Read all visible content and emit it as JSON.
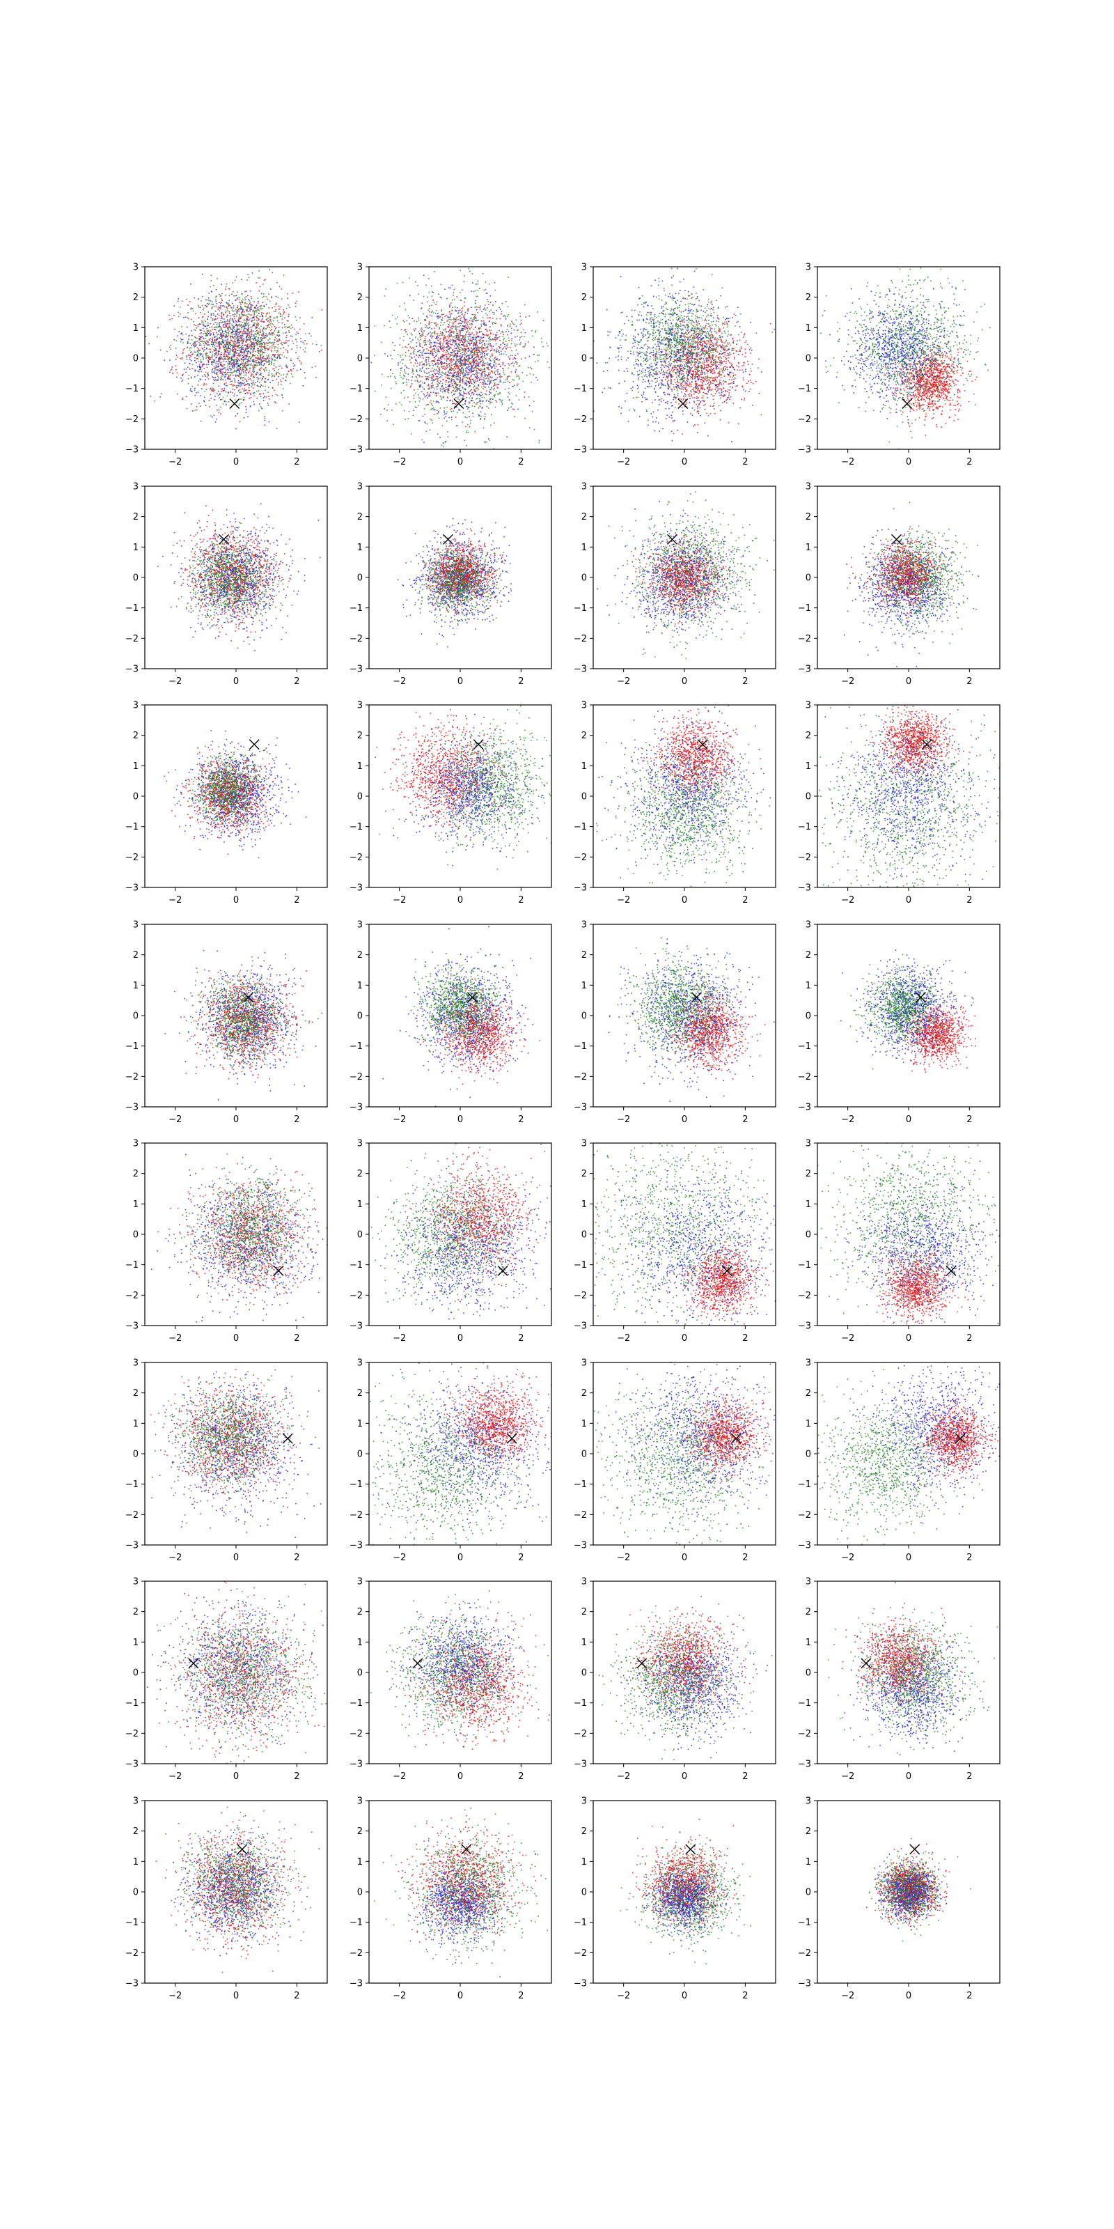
{
  "figure": {
    "rows": 8,
    "cols": 4,
    "background": "#ffffff"
  },
  "style": {
    "colors": {
      "red": "#e41a1c",
      "green": "#2a8a2a",
      "blue": "#2b2bd9",
      "marker": "#000000"
    },
    "axis_color": "#000000"
  },
  "chart_data": {
    "type": "scatter",
    "xlim": [
      -3,
      3
    ],
    "ylim": [
      -3,
      3
    ],
    "x_ticks": [
      -2,
      0,
      2
    ],
    "y_ticks": [
      -3,
      -2,
      -1,
      0,
      1,
      2,
      3
    ],
    "x_tick_labels": [
      "−2",
      "0",
      "2"
    ],
    "y_tick_labels": [
      "−3",
      "−2",
      "−1",
      "0",
      "1",
      "2",
      "3"
    ],
    "grid": false,
    "legend": "none",
    "title": "",
    "xlabel": "",
    "ylabel": "",
    "marker_symbol": "×",
    "description_of_series": [
      "red",
      "green",
      "blue"
    ],
    "rows": [
      {
        "marker": [
          -0.05,
          -1.5
        ],
        "panels": [
          {
            "red": {
              "cx": 0.1,
              "cy": 0.4,
              "sd": 0.9
            },
            "green": {
              "cx": 0.2,
              "cy": 0.5,
              "sd": 0.9
            },
            "blue": {
              "cx": -0.1,
              "cy": 0.3,
              "sd": 0.9
            }
          },
          {
            "red": {
              "cx": 0.0,
              "cy": 0.1,
              "sd": 0.8
            },
            "green": {
              "cx": 0.0,
              "cy": 0.0,
              "sd": 1.3
            },
            "blue": {
              "cx": 0.0,
              "cy": 0.0,
              "sd": 0.9
            }
          },
          {
            "red": {
              "cx": 0.6,
              "cy": -0.2,
              "sd": 0.7
            },
            "green": {
              "cx": -0.2,
              "cy": 0.5,
              "sd": 0.8
            },
            "blue": {
              "cx": -0.2,
              "cy": 0.1,
              "sd": 1.0
            }
          },
          {
            "red": {
              "cx": 0.7,
              "cy": -0.8,
              "sd": 0.5
            },
            "green": {
              "cx": 0.0,
              "cy": 0.4,
              "sd": 1.0
            },
            "blue": {
              "cx": -0.3,
              "cy": 0.3,
              "sd": 0.8
            }
          }
        ]
      },
      {
        "marker": [
          -0.4,
          1.25
        ],
        "panels": [
          {
            "red": {
              "cx": -0.1,
              "cy": 0.1,
              "sd": 0.7
            },
            "green": {
              "cx": -0.2,
              "cy": 0.0,
              "sd": 0.6
            },
            "blue": {
              "cx": 0.0,
              "cy": 0.0,
              "sd": 0.8
            }
          },
          {
            "red": {
              "cx": 0.0,
              "cy": 0.1,
              "sd": 0.5
            },
            "green": {
              "cx": -0.1,
              "cy": -0.1,
              "sd": 0.5
            },
            "blue": {
              "cx": 0.0,
              "cy": 0.0,
              "sd": 0.7
            }
          },
          {
            "red": {
              "cx": 0.0,
              "cy": 0.0,
              "sd": 0.55
            },
            "green": {
              "cx": 0.2,
              "cy": 0.2,
              "sd": 0.9
            },
            "blue": {
              "cx": -0.1,
              "cy": -0.1,
              "sd": 0.8
            }
          },
          {
            "red": {
              "cx": -0.1,
              "cy": 0.1,
              "sd": 0.5
            },
            "green": {
              "cx": 0.3,
              "cy": 0.0,
              "sd": 0.7
            },
            "blue": {
              "cx": -0.1,
              "cy": -0.3,
              "sd": 0.7
            }
          }
        ]
      },
      {
        "marker": [
          0.6,
          1.7
        ],
        "panels": [
          {
            "red": {
              "cx": -0.2,
              "cy": 0.1,
              "sd": 0.6
            },
            "green": {
              "cx": -0.3,
              "cy": 0.2,
              "sd": 0.5
            },
            "blue": {
              "cx": 0.0,
              "cy": 0.1,
              "sd": 0.7
            }
          },
          {
            "red": {
              "cx": -0.5,
              "cy": 0.7,
              "sd": 0.8
            },
            "green": {
              "cx": 1.0,
              "cy": 0.4,
              "sd": 0.9
            },
            "blue": {
              "cx": 0.3,
              "cy": 0.2,
              "sd": 0.8
            }
          },
          {
            "red": {
              "cx": 0.3,
              "cy": 1.3,
              "sd": 0.6
            },
            "green": {
              "cx": 0.0,
              "cy": -0.5,
              "sd": 1.0
            },
            "blue": {
              "cx": 0.1,
              "cy": 0.2,
              "sd": 1.0
            }
          },
          {
            "red": {
              "cx": 0.2,
              "cy": 1.8,
              "sd": 0.5
            },
            "green": {
              "cx": 0.0,
              "cy": -0.5,
              "sd": 1.5
            },
            "blue": {
              "cx": 0.0,
              "cy": 0.2,
              "sd": 1.1
            }
          }
        ]
      },
      {
        "marker": [
          0.4,
          0.6
        ],
        "panels": [
          {
            "red": {
              "cx": 0.3,
              "cy": -0.2,
              "sd": 0.7
            },
            "green": {
              "cx": 0.2,
              "cy": -0.1,
              "sd": 0.6
            },
            "blue": {
              "cx": 0.4,
              "cy": -0.1,
              "sd": 0.8
            }
          },
          {
            "red": {
              "cx": 0.6,
              "cy": -0.5,
              "sd": 0.6
            },
            "green": {
              "cx": 0.0,
              "cy": 0.3,
              "sd": 0.6
            },
            "blue": {
              "cx": 0.2,
              "cy": 0.0,
              "sd": 0.8
            }
          },
          {
            "red": {
              "cx": 0.8,
              "cy": -0.5,
              "sd": 0.55
            },
            "green": {
              "cx": -0.2,
              "cy": 0.3,
              "sd": 0.7
            },
            "blue": {
              "cx": 0.2,
              "cy": 0.0,
              "sd": 0.9
            }
          },
          {
            "red": {
              "cx": 0.9,
              "cy": -0.6,
              "sd": 0.45
            },
            "green": {
              "cx": -0.2,
              "cy": 0.3,
              "sd": 0.55
            },
            "blue": {
              "cx": 0.0,
              "cy": 0.2,
              "sd": 0.7
            }
          }
        ]
      },
      {
        "marker": [
          1.4,
          -1.2
        ],
        "panels": [
          {
            "red": {
              "cx": 0.5,
              "cy": 0.0,
              "sd": 0.9
            },
            "green": {
              "cx": 0.4,
              "cy": 0.2,
              "sd": 0.8
            },
            "blue": {
              "cx": 0.4,
              "cy": -0.2,
              "sd": 1.0
            }
          },
          {
            "red": {
              "cx": 0.6,
              "cy": 0.6,
              "sd": 0.8
            },
            "green": {
              "cx": -0.3,
              "cy": 0.0,
              "sd": 1.0
            },
            "blue": {
              "cx": 0.3,
              "cy": -0.5,
              "sd": 1.0
            }
          },
          {
            "red": {
              "cx": 1.2,
              "cy": -1.5,
              "sd": 0.5
            },
            "green": {
              "cx": -0.4,
              "cy": 0.5,
              "sd": 1.5
            },
            "blue": {
              "cx": 0.5,
              "cy": -0.5,
              "sd": 1.2
            }
          },
          {
            "red": {
              "cx": 0.2,
              "cy": -1.7,
              "sd": 0.5
            },
            "green": {
              "cx": 0.0,
              "cy": 0.5,
              "sd": 1.2
            },
            "blue": {
              "cx": 0.4,
              "cy": -0.6,
              "sd": 1.0
            }
          }
        ]
      },
      {
        "marker": [
          1.7,
          0.5
        ],
        "panels": [
          {
            "red": {
              "cx": -0.2,
              "cy": 0.5,
              "sd": 0.9
            },
            "green": {
              "cx": -0.3,
              "cy": 0.6,
              "sd": 0.8
            },
            "blue": {
              "cx": 0.0,
              "cy": 0.3,
              "sd": 1.0
            }
          },
          {
            "red": {
              "cx": 1.2,
              "cy": 1.0,
              "sd": 0.6
            },
            "green": {
              "cx": -0.6,
              "cy": -0.5,
              "sd": 1.2
            },
            "blue": {
              "cx": 0.5,
              "cy": 0.3,
              "sd": 1.1
            }
          },
          {
            "red": {
              "cx": 1.3,
              "cy": 0.6,
              "sd": 0.55
            },
            "green": {
              "cx": -0.3,
              "cy": -0.3,
              "sd": 1.2
            },
            "blue": {
              "cx": 0.6,
              "cy": 0.6,
              "sd": 1.1
            }
          },
          {
            "red": {
              "cx": 1.5,
              "cy": 0.5,
              "sd": 0.5
            },
            "green": {
              "cx": -0.8,
              "cy": -0.3,
              "sd": 1.0
            },
            "blue": {
              "cx": 0.8,
              "cy": 0.8,
              "sd": 1.0
            }
          }
        ]
      },
      {
        "marker": [
          -1.4,
          0.3
        ],
        "panels": [
          {
            "red": {
              "cx": 0.2,
              "cy": -0.1,
              "sd": 1.0
            },
            "green": {
              "cx": 0.3,
              "cy": 0.0,
              "sd": 1.0
            },
            "blue": {
              "cx": 0.0,
              "cy": 0.1,
              "sd": 1.0
            }
          },
          {
            "red": {
              "cx": 0.5,
              "cy": -0.4,
              "sd": 0.8
            },
            "green": {
              "cx": -0.2,
              "cy": 0.0,
              "sd": 0.9
            },
            "blue": {
              "cx": 0.0,
              "cy": 0.3,
              "sd": 0.8
            }
          },
          {
            "red": {
              "cx": 0.0,
              "cy": 0.4,
              "sd": 0.7
            },
            "green": {
              "cx": -0.3,
              "cy": -0.2,
              "sd": 0.9
            },
            "blue": {
              "cx": 0.2,
              "cy": -0.3,
              "sd": 0.8
            }
          },
          {
            "red": {
              "cx": -0.3,
              "cy": 0.4,
              "sd": 0.6
            },
            "green": {
              "cx": 0.2,
              "cy": -0.1,
              "sd": 0.9
            },
            "blue": {
              "cx": 0.1,
              "cy": -0.5,
              "sd": 0.8
            }
          }
        ]
      },
      {
        "marker": [
          0.2,
          1.4
        ],
        "panels": [
          {
            "red": {
              "cx": -0.1,
              "cy": 0.2,
              "sd": 0.8
            },
            "green": {
              "cx": 0.0,
              "cy": 0.3,
              "sd": 0.8
            },
            "blue": {
              "cx": -0.1,
              "cy": 0.1,
              "sd": 0.8
            }
          },
          {
            "red": {
              "cx": 0.2,
              "cy": 0.3,
              "sd": 0.8
            },
            "green": {
              "cx": 0.2,
              "cy": 0.0,
              "sd": 0.9
            },
            "blue": {
              "cx": 0.0,
              "cy": -0.3,
              "sd": 0.6
            }
          },
          {
            "red": {
              "cx": 0.0,
              "cy": 0.3,
              "sd": 0.6
            },
            "green": {
              "cx": 0.1,
              "cy": -0.1,
              "sd": 0.7
            },
            "blue": {
              "cx": 0.0,
              "cy": -0.2,
              "sd": 0.5
            }
          },
          {
            "red": {
              "cx": 0.0,
              "cy": 0.1,
              "sd": 0.45
            },
            "green": {
              "cx": 0.0,
              "cy": 0.1,
              "sd": 0.45
            },
            "blue": {
              "cx": 0.0,
              "cy": 0.0,
              "sd": 0.4
            }
          }
        ]
      }
    ]
  }
}
